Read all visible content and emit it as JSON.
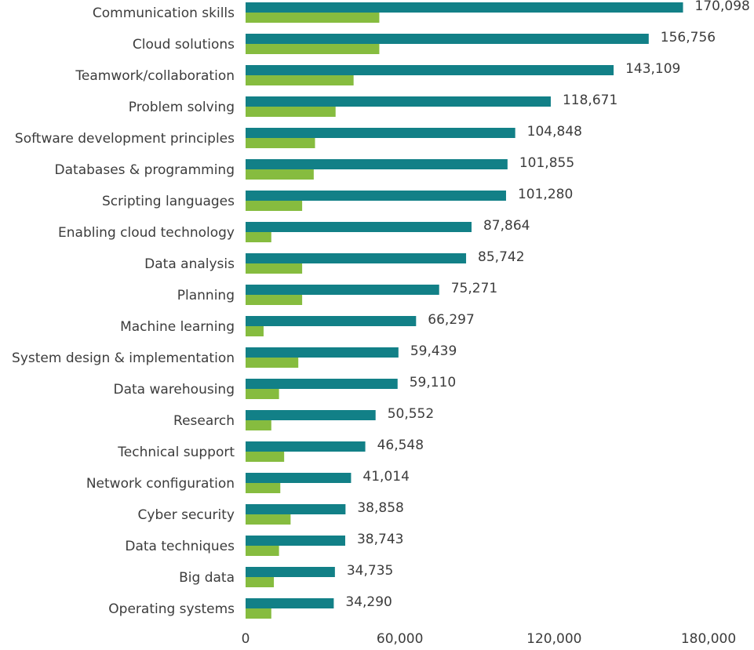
{
  "chart_data": {
    "type": "barh",
    "categories": [
      "Communication skills",
      "Cloud solutions",
      "Teamwork/collaboration",
      "Problem solving",
      "Software development principles",
      "Databases & programming",
      "Scripting languages",
      "Enabling cloud technology",
      "Data analysis",
      "Planning",
      "Machine learning",
      "System design & implementation",
      "Data warehousing",
      "Research",
      "Technical support",
      "Network configuration",
      "Cyber security",
      "Data techniques",
      "Big data",
      "Operating systems"
    ],
    "series": [
      {
        "color": "#128087",
        "values": [
          170098,
          156756,
          143109,
          118671,
          104848,
          101855,
          101280,
          87864,
          85742,
          75271,
          66297,
          59439,
          59110,
          50552,
          46548,
          41014,
          38858,
          38743,
          34735,
          34290
        ],
        "value_labels": [
          "170,098",
          "156,756",
          "143,109",
          "118,671",
          "104,848",
          "101,855",
          "101,280",
          "87,864",
          "85,742",
          "75,271",
          "66,297",
          "59,439",
          "59,110",
          "50,552",
          "46,548",
          "41,014",
          "38,858",
          "38,743",
          "34,735",
          "34,290"
        ]
      },
      {
        "color": "#86bc3f",
        "values": [
          52000,
          52000,
          42000,
          35000,
          27000,
          26500,
          22000,
          10000,
          22000,
          22000,
          7000,
          20500,
          13000,
          10000,
          15000,
          13500,
          17500,
          13000,
          11000,
          10000
        ]
      }
    ],
    "xlim": [
      0,
      180000
    ],
    "xticks": [
      0,
      {
        "value": 60000,
        "label": "60,000"
      },
      {
        "value": 120000,
        "label": "120,000"
      },
      {
        "value": 180000,
        "label": "180,000"
      }
    ]
  }
}
